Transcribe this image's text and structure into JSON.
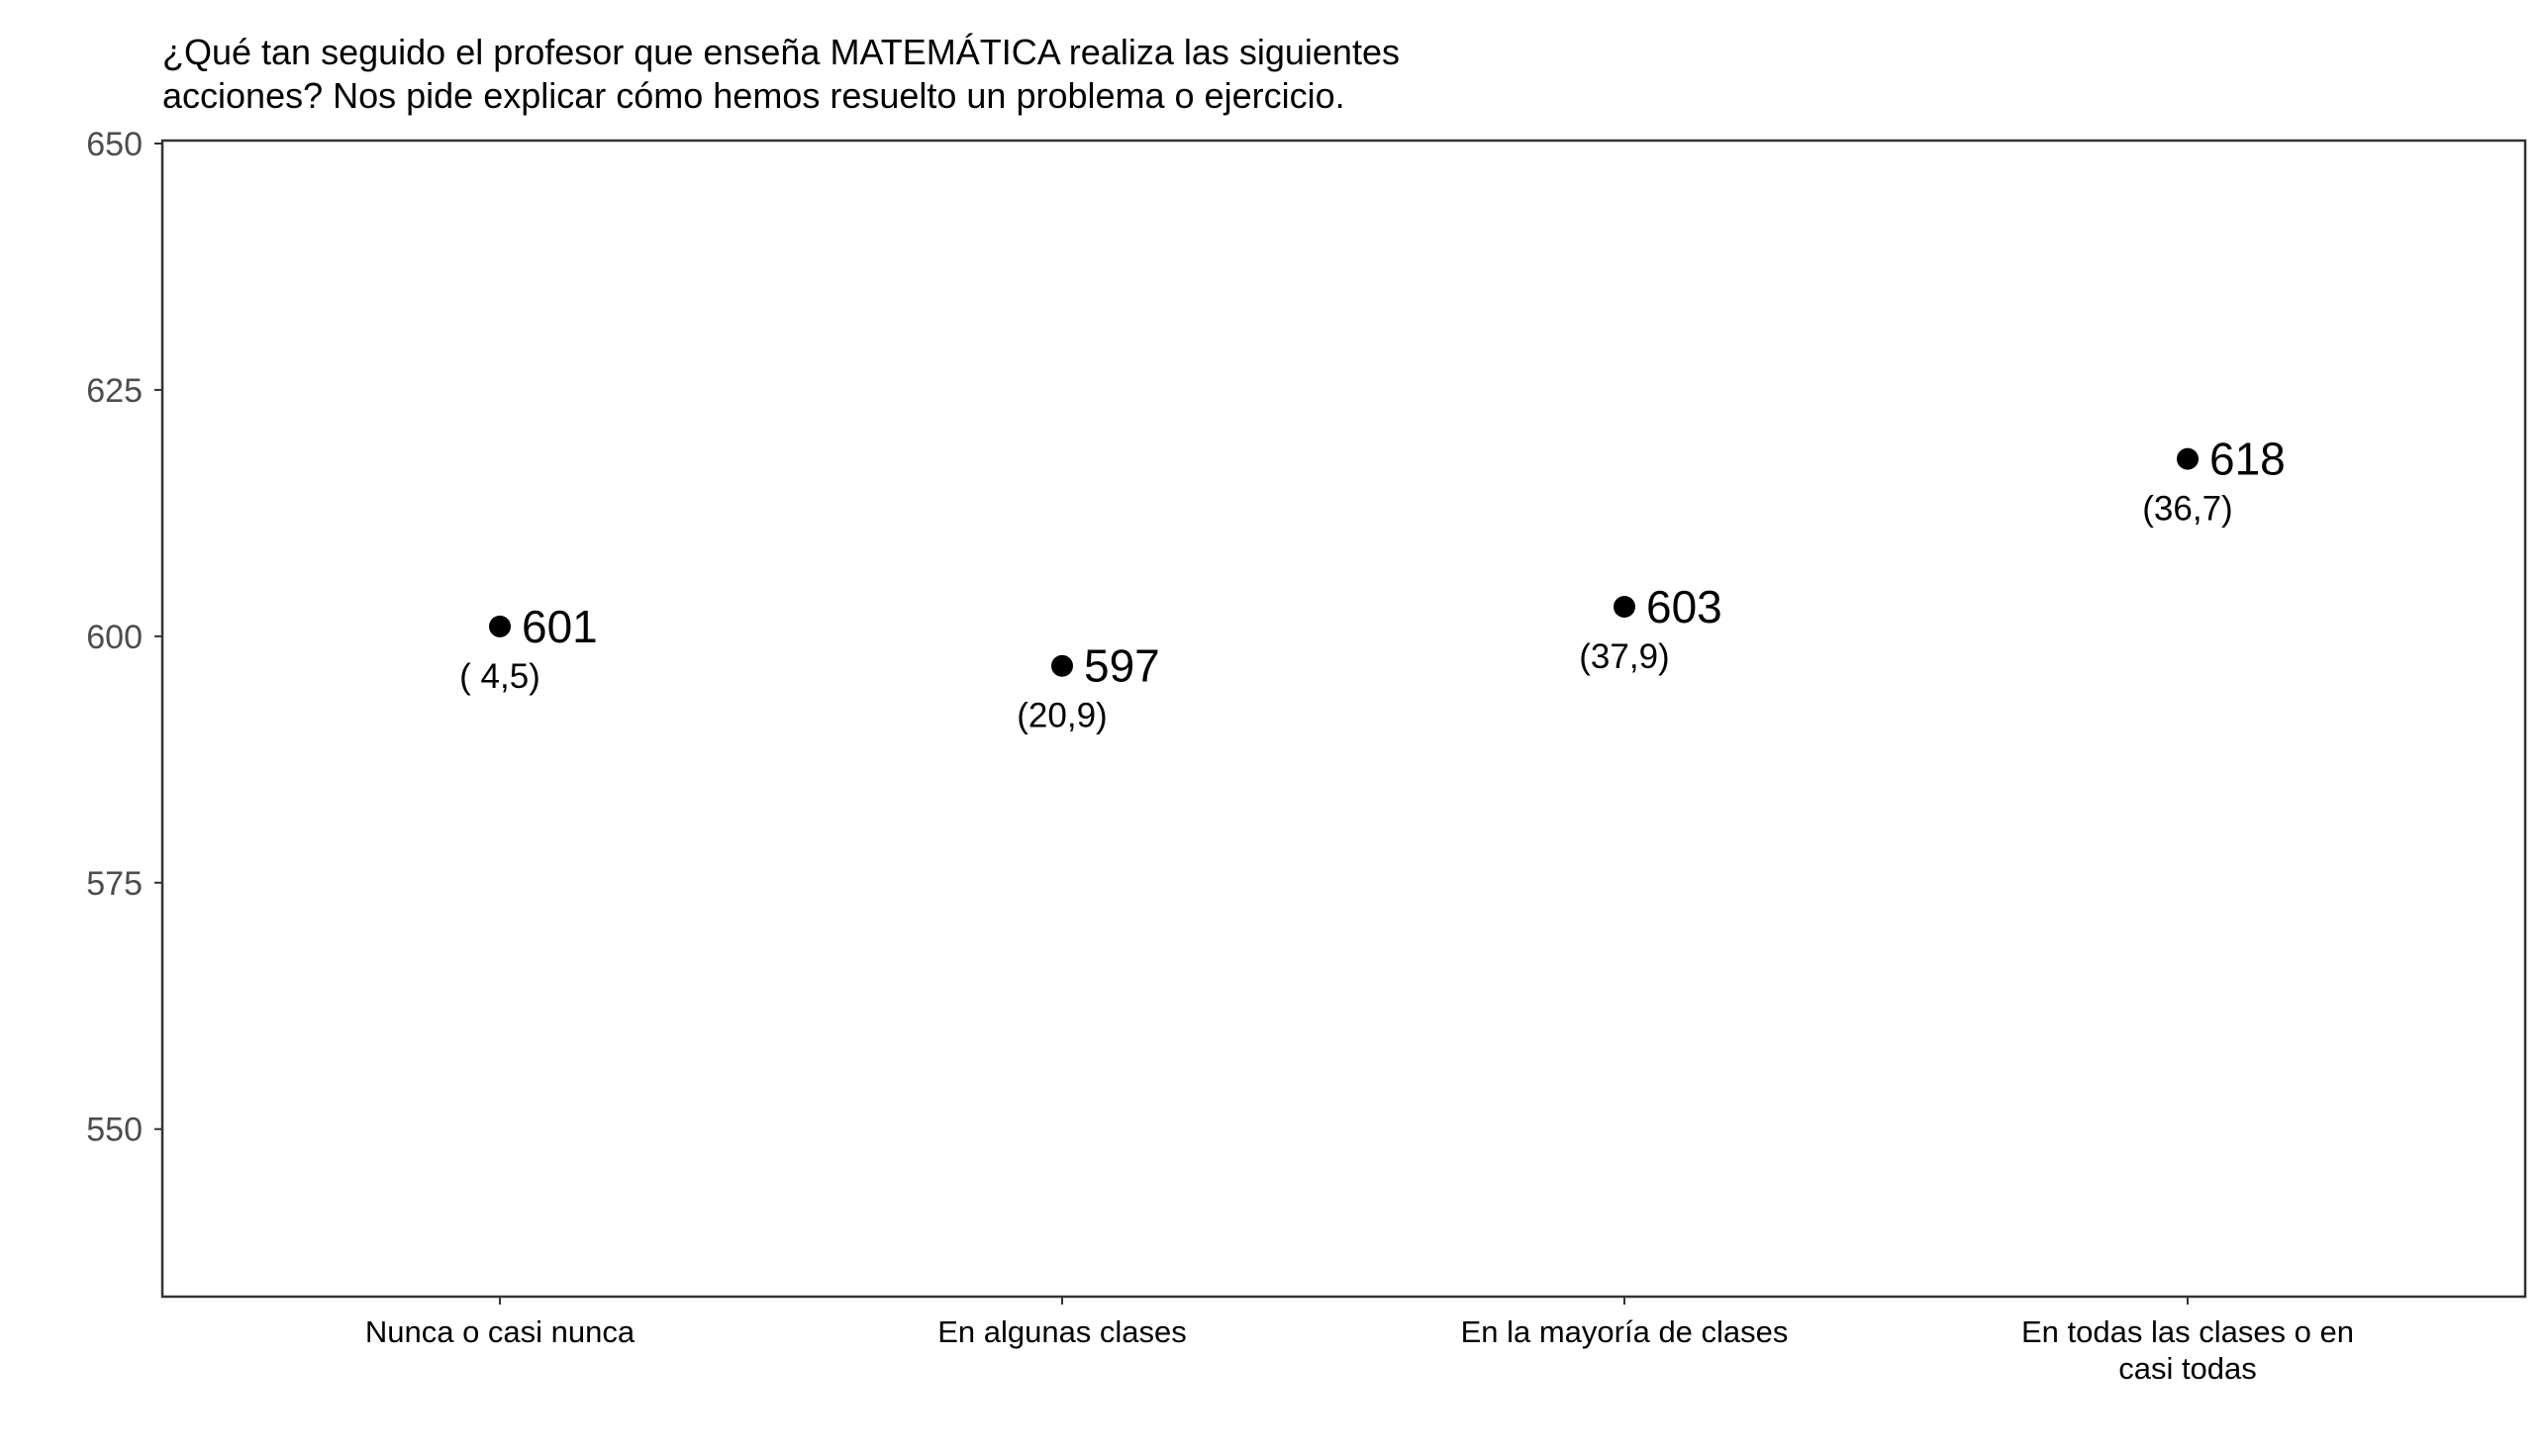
{
  "chart_data": {
    "type": "scatter",
    "title_lines": [
      "¿Qué tan seguido el profesor que enseña MATEMÁTICA realiza las siguientes",
      "acciones? Nos pide explicar cómo hemos resuelto un problema o ejercicio."
    ],
    "xlabel": "",
    "ylabel": "",
    "ylim": [
      533,
      650
    ],
    "yticks": [
      {
        "value": 650,
        "label": "650"
      },
      {
        "value": 625,
        "label": "625"
      },
      {
        "value": 600,
        "label": "600"
      },
      {
        "value": 575,
        "label": "575"
      },
      {
        "value": 550,
        "label": "550"
      }
    ],
    "categories": [
      {
        "label_lines": [
          "Nunca o casi nunca"
        ]
      },
      {
        "label_lines": [
          "En algunas clases"
        ]
      },
      {
        "label_lines": [
          "En la mayoría de clases"
        ]
      },
      {
        "label_lines": [
          "En todas las clases o en",
          "casi todas"
        ]
      }
    ],
    "points": [
      {
        "value": 601,
        "value_label": "601",
        "pct_label": "( 4,5)"
      },
      {
        "value": 597,
        "value_label": "597",
        "pct_label": "(20,9)"
      },
      {
        "value": 603,
        "value_label": "603",
        "pct_label": "(37,9)"
      },
      {
        "value": 618,
        "value_label": "618",
        "pct_label": "(36,7)"
      }
    ],
    "grid": false,
    "colors": {
      "point": "#000000",
      "axis_text": "#4d4d4d",
      "frame": "#333333"
    }
  }
}
